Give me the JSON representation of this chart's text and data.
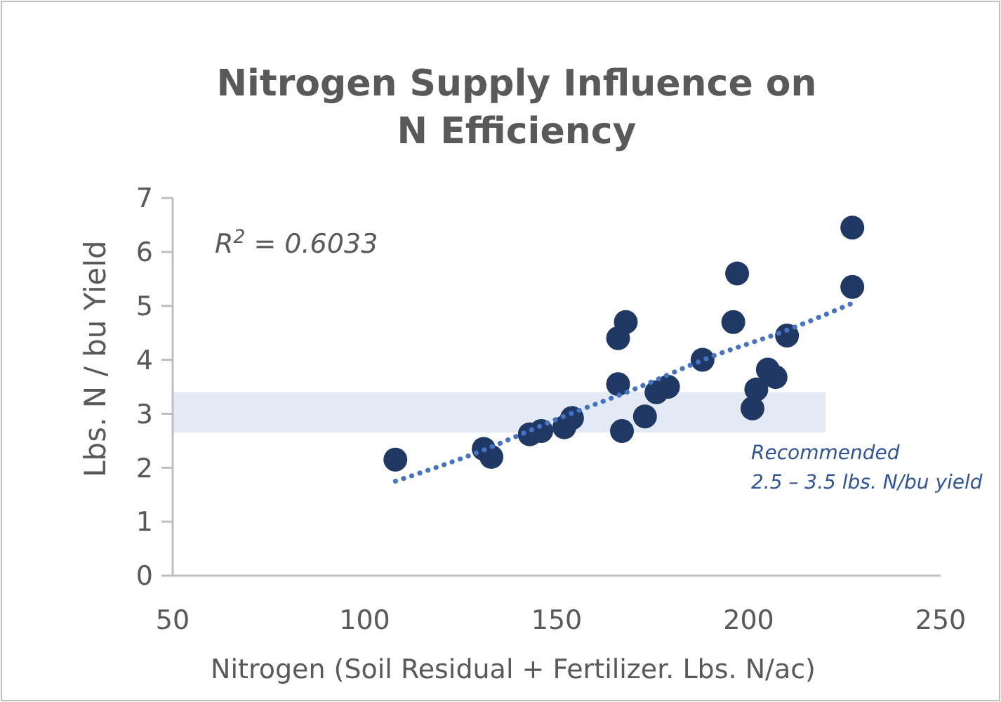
{
  "chart_data": {
    "type": "scatter",
    "title": "Nitrogen Supply Influence on\nN Efficiency",
    "xlabel": "Nitrogen (Soil Residual + Fertilizer. Lbs. N/ac)",
    "ylabel": "Lbs. N / bu Yield",
    "xlim": [
      50,
      250
    ],
    "xticks": [
      50,
      100,
      150,
      200,
      250
    ],
    "ylim": [
      0,
      7
    ],
    "yticks": [
      0,
      1,
      2,
      3,
      4,
      5,
      6,
      7
    ],
    "grid": false,
    "marker": "circle",
    "annotations": [
      "R$^{2}$ = 0.6033"
    ],
    "bands": [
      {
        "axis": "y",
        "from": 2.65,
        "to": 3.4,
        "label": "Recommended\n2.5 – 3.5 lbs. N/bu yield",
        "color": "#e3e9f5"
      }
    ],
    "series": [
      {
        "type": "scatter",
        "color": "#1f3864",
        "x": [
          108,
          131,
          133,
          143,
          146,
          152,
          154,
          166,
          166,
          167,
          168,
          173,
          176,
          179,
          188,
          196,
          197,
          201,
          202,
          205,
          207,
          210,
          227,
          227
        ],
        "values": [
          2.15,
          2.35,
          2.2,
          2.62,
          2.68,
          2.75,
          2.92,
          3.55,
          4.4,
          2.68,
          4.7,
          2.95,
          3.4,
          3.5,
          4.0,
          4.7,
          5.6,
          3.1,
          3.45,
          3.82,
          3.68,
          4.45,
          6.45,
          5.35
        ]
      },
      {
        "type": "line",
        "color": "#4472c4",
        "line_style": "dotted",
        "marker": "none",
        "x": [
          108,
          130,
          150,
          170,
          190,
          210,
          227
        ],
        "values": [
          1.75,
          2.3,
          2.9,
          3.45,
          4.05,
          4.55,
          5.05
        ]
      }
    ]
  }
}
